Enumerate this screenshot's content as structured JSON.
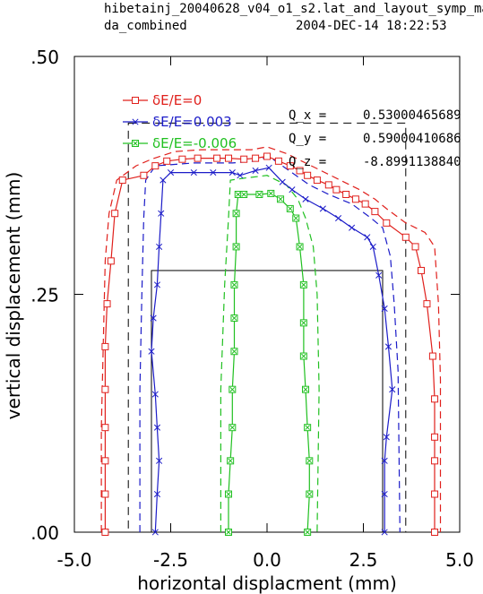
{
  "header": {
    "line1": "hibetainj_20040628_v04_o1_s2.lat_and_layout_symp_map",
    "line2_left": "da_combined",
    "line2_right": "2004-DEC-14  18:22:53"
  },
  "chart_data": {
    "type": "line",
    "xlabel": "horizontal displacment (mm)",
    "ylabel": "vertical displacement (mm)",
    "xlim": [
      -5.0,
      5.0
    ],
    "ylim": [
      0.0,
      0.5
    ],
    "x_ticks": [
      "-5.0",
      "-2.5",
      "0.0",
      "2.5",
      "5.0"
    ],
    "y_ticks": [
      ".00",
      ".25",
      ".50"
    ],
    "annotations": [
      {
        "label": "Q_x  =",
        "value": "0.53000465689"
      },
      {
        "label": "Q_y  =",
        "value": "0.59000410686"
      },
      {
        "label": "Q_z  =",
        "value": "-8.8991138840"
      }
    ],
    "boxes": [
      {
        "name": "outer-aperture",
        "x": [
          -3.6,
          3.6
        ],
        "y": [
          0.0,
          0.43
        ]
      },
      {
        "name": "inner-aperture",
        "x": [
          -3.0,
          3.0
        ],
        "y": [
          0.0,
          0.275
        ]
      }
    ],
    "series": [
      {
        "name": "δE/E=0",
        "color": "#e0201c",
        "marker": "square",
        "points": [
          [
            -4.2,
            0.0
          ],
          [
            -4.2,
            0.04
          ],
          [
            -4.2,
            0.075
          ],
          [
            -4.2,
            0.11
          ],
          [
            -4.2,
            0.15
          ],
          [
            -4.2,
            0.195
          ],
          [
            -4.15,
            0.24
          ],
          [
            -4.05,
            0.285
          ],
          [
            -3.95,
            0.335
          ],
          [
            -3.75,
            0.37
          ],
          [
            -3.2,
            0.375
          ],
          [
            -2.9,
            0.385
          ],
          [
            -2.6,
            0.39
          ],
          [
            -2.2,
            0.392
          ],
          [
            -1.8,
            0.393
          ],
          [
            -1.3,
            0.393
          ],
          [
            -1.0,
            0.393
          ],
          [
            -0.6,
            0.392
          ],
          [
            -0.3,
            0.393
          ],
          [
            0.0,
            0.395
          ],
          [
            0.3,
            0.39
          ],
          [
            0.6,
            0.385
          ],
          [
            0.85,
            0.38
          ],
          [
            1.05,
            0.375
          ],
          [
            1.3,
            0.37
          ],
          [
            1.6,
            0.365
          ],
          [
            1.8,
            0.36
          ],
          [
            2.05,
            0.355
          ],
          [
            2.3,
            0.35
          ],
          [
            2.55,
            0.345
          ],
          [
            2.8,
            0.337
          ],
          [
            3.1,
            0.325
          ],
          [
            3.6,
            0.31
          ],
          [
            3.85,
            0.3
          ],
          [
            4.0,
            0.275
          ],
          [
            4.15,
            0.24
          ],
          [
            4.3,
            0.185
          ],
          [
            4.35,
            0.14
          ],
          [
            4.35,
            0.1
          ],
          [
            4.35,
            0.075
          ],
          [
            4.35,
            0.04
          ],
          [
            4.35,
            0.0
          ]
        ]
      },
      {
        "name": "δE/E=0.003",
        "color": "#1c1cc8",
        "marker": "x",
        "points": [
          [
            -2.9,
            0.0
          ],
          [
            -2.85,
            0.04
          ],
          [
            -2.8,
            0.075
          ],
          [
            -2.85,
            0.11
          ],
          [
            -2.9,
            0.145
          ],
          [
            -3.0,
            0.19
          ],
          [
            -2.95,
            0.225
          ],
          [
            -2.85,
            0.26
          ],
          [
            -2.8,
            0.3
          ],
          [
            -2.75,
            0.335
          ],
          [
            -2.7,
            0.37
          ],
          [
            -2.5,
            0.378
          ],
          [
            -1.9,
            0.378
          ],
          [
            -1.4,
            0.378
          ],
          [
            -0.9,
            0.378
          ],
          [
            -0.7,
            0.375
          ],
          [
            -0.3,
            0.38
          ],
          [
            0.05,
            0.383
          ],
          [
            0.4,
            0.368
          ],
          [
            0.65,
            0.36
          ],
          [
            1.0,
            0.35
          ],
          [
            1.45,
            0.34
          ],
          [
            1.85,
            0.33
          ],
          [
            2.2,
            0.32
          ],
          [
            2.6,
            0.31
          ],
          [
            2.75,
            0.3
          ],
          [
            2.9,
            0.27
          ],
          [
            3.05,
            0.235
          ],
          [
            3.15,
            0.195
          ],
          [
            3.25,
            0.15
          ],
          [
            3.1,
            0.1
          ],
          [
            3.05,
            0.075
          ],
          [
            3.05,
            0.04
          ],
          [
            3.05,
            0.0
          ]
        ]
      },
      {
        "name": "δE/E=-0.006",
        "color": "#20c020",
        "marker": "boxx",
        "points": [
          [
            -1.0,
            0.0
          ],
          [
            -1.0,
            0.04
          ],
          [
            -0.95,
            0.075
          ],
          [
            -0.9,
            0.11
          ],
          [
            -0.9,
            0.15
          ],
          [
            -0.85,
            0.19
          ],
          [
            -0.85,
            0.225
          ],
          [
            -0.85,
            0.26
          ],
          [
            -0.8,
            0.3
          ],
          [
            -0.8,
            0.335
          ],
          [
            -0.75,
            0.355
          ],
          [
            -0.6,
            0.355
          ],
          [
            -0.2,
            0.355
          ],
          [
            0.1,
            0.356
          ],
          [
            0.35,
            0.35
          ],
          [
            0.6,
            0.34
          ],
          [
            0.75,
            0.33
          ],
          [
            0.85,
            0.3
          ],
          [
            0.95,
            0.26
          ],
          [
            0.95,
            0.22
          ],
          [
            0.95,
            0.185
          ],
          [
            1.0,
            0.15
          ],
          [
            1.05,
            0.11
          ],
          [
            1.1,
            0.075
          ],
          [
            1.1,
            0.04
          ],
          [
            1.05,
            0.0
          ]
        ]
      }
    ],
    "envelopes": [
      {
        "series": "δE/E=0",
        "color": "#e0201c",
        "points": [
          [
            -4.3,
            0.0
          ],
          [
            -4.3,
            0.11
          ],
          [
            -4.25,
            0.2
          ],
          [
            -4.2,
            0.285
          ],
          [
            -4.1,
            0.335
          ],
          [
            -3.9,
            0.37
          ],
          [
            -3.4,
            0.385
          ],
          [
            -3.0,
            0.392
          ],
          [
            -2.4,
            0.4
          ],
          [
            -1.7,
            0.402
          ],
          [
            -1.0,
            0.402
          ],
          [
            -0.4,
            0.402
          ],
          [
            0.0,
            0.405
          ],
          [
            0.5,
            0.398
          ],
          [
            0.9,
            0.39
          ],
          [
            1.4,
            0.38
          ],
          [
            1.9,
            0.37
          ],
          [
            2.4,
            0.36
          ],
          [
            2.8,
            0.35
          ],
          [
            3.1,
            0.34
          ],
          [
            3.6,
            0.325
          ],
          [
            4.1,
            0.315
          ],
          [
            4.35,
            0.3
          ],
          [
            4.45,
            0.24
          ],
          [
            4.5,
            0.16
          ],
          [
            4.5,
            0.0
          ]
        ]
      },
      {
        "series": "δE/E=0.003",
        "color": "#1c1cc8",
        "points": [
          [
            -3.3,
            0.0
          ],
          [
            -3.3,
            0.15
          ],
          [
            -3.25,
            0.25
          ],
          [
            -3.2,
            0.33
          ],
          [
            -3.15,
            0.37
          ],
          [
            -2.9,
            0.385
          ],
          [
            -1.9,
            0.388
          ],
          [
            -0.9,
            0.388
          ],
          [
            -0.3,
            0.39
          ],
          [
            0.05,
            0.395
          ],
          [
            0.5,
            0.382
          ],
          [
            1.1,
            0.365
          ],
          [
            1.6,
            0.355
          ],
          [
            2.2,
            0.345
          ],
          [
            2.7,
            0.33
          ],
          [
            3.0,
            0.32
          ],
          [
            3.2,
            0.29
          ],
          [
            3.3,
            0.24
          ],
          [
            3.4,
            0.17
          ],
          [
            3.45,
            0.0
          ]
        ]
      },
      {
        "series": "δE/E=-0.006",
        "color": "#20c020",
        "points": [
          [
            -1.2,
            0.0
          ],
          [
            -1.2,
            0.15
          ],
          [
            -1.1,
            0.26
          ],
          [
            -1.0,
            0.33
          ],
          [
            -0.95,
            0.37
          ],
          [
            -0.6,
            0.372
          ],
          [
            0.0,
            0.375
          ],
          [
            0.5,
            0.365
          ],
          [
            0.8,
            0.35
          ],
          [
            1.0,
            0.33
          ],
          [
            1.2,
            0.3
          ],
          [
            1.3,
            0.25
          ],
          [
            1.35,
            0.15
          ],
          [
            1.3,
            0.0
          ]
        ]
      }
    ]
  }
}
